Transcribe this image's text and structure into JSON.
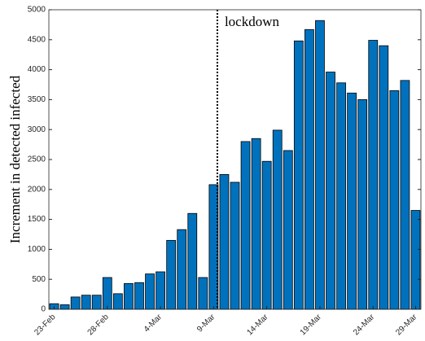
{
  "chart_data": {
    "type": "bar",
    "ylabel": "Increment in detected infected",
    "categories": [
      "23-Feb",
      null,
      null,
      null,
      null,
      "28-Feb",
      null,
      null,
      null,
      null,
      "4-Mar",
      null,
      null,
      null,
      null,
      "9-Mar",
      null,
      null,
      null,
      null,
      "14-Mar",
      null,
      null,
      null,
      null,
      "19-Mar",
      null,
      null,
      null,
      null,
      "24-Mar",
      null,
      null,
      null,
      "29-Mar"
    ],
    "values": [
      93,
      75,
      205,
      235,
      235,
      530,
      260,
      430,
      445,
      590,
      625,
      1150,
      1330,
      1600,
      530,
      2080,
      2250,
      2120,
      2800,
      2850,
      2470,
      2990,
      2650,
      4480,
      4670,
      4820,
      3960,
      3780,
      3610,
      3500,
      4490,
      4400,
      3650,
      3820,
      1650
    ],
    "color": "#0072bd",
    "ylim": [
      0,
      5000
    ],
    "yticks": [
      0,
      500,
      1000,
      1500,
      2000,
      2500,
      3000,
      3500,
      4000,
      4500,
      5000
    ],
    "grid": false,
    "annotation": {
      "text": "lockdown",
      "category": "9-Mar"
    }
  }
}
